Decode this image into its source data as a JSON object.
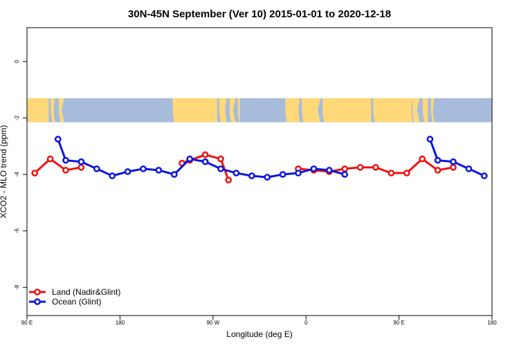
{
  "chart_data": {
    "type": "line",
    "title": "30N-45N September (Ver 10)   2015-01-01 to 2020-12-18",
    "xlabel": "Longitude (deg E)",
    "ylabel": "XCO2 - MLO trend (ppm)",
    "xlim": [
      90,
      540
    ],
    "ylim": [
      -9,
      1.2
    ],
    "x_ticks": [
      {
        "value": 90,
        "label": "90 E"
      },
      {
        "value": 180,
        "label": "180"
      },
      {
        "value": 270,
        "label": "90 W"
      },
      {
        "value": 360,
        "label": "0"
      },
      {
        "value": 450,
        "label": "90 E"
      },
      {
        "value": 540,
        "label": "180"
      }
    ],
    "y_ticks": [
      {
        "value": 0,
        "label": "0"
      },
      {
        "value": -2,
        "label": "-2"
      },
      {
        "value": -4,
        "label": "-4"
      },
      {
        "value": -6,
        "label": "-6"
      },
      {
        "value": -8,
        "label": "-8"
      }
    ],
    "map_band": {
      "y_top": -1.3,
      "y_bottom": -2.15,
      "ocean_color": "#a7bcdb",
      "land_color": "#ffd878"
    },
    "legend_position": "bottom-left",
    "series": [
      {
        "name": "Land (Nadir&Glint)",
        "color": "#ee1111",
        "segments": [
          [
            [
              97.5,
              -3.95
            ],
            [
              112.5,
              -3.45
            ],
            [
              127.5,
              -3.85
            ],
            [
              142.5,
              -3.75
            ]
          ],
          [
            [
              240,
              -3.6
            ],
            [
              247.5,
              -3.5
            ],
            [
              262.5,
              -3.3
            ],
            [
              277.5,
              -3.45
            ],
            [
              285,
              -4.2
            ]
          ],
          [
            [
              352.5,
              -3.8
            ],
            [
              367.5,
              -3.85
            ],
            [
              382.5,
              -3.9
            ],
            [
              397.5,
              -3.8
            ],
            [
              412.5,
              -3.75
            ],
            [
              427.5,
              -3.75
            ],
            [
              442.5,
              -3.95
            ],
            [
              457.5,
              -3.95
            ],
            [
              472.5,
              -3.45
            ],
            [
              487.5,
              -3.85
            ],
            [
              502.5,
              -3.75
            ]
          ]
        ]
      },
      {
        "name": "Ocean (Glint)",
        "color": "#0a14e0",
        "segments": [
          [
            [
              120,
              -2.75
            ],
            [
              127.5,
              -3.5
            ],
            [
              142.5,
              -3.55
            ],
            [
              157.5,
              -3.8
            ],
            [
              172.5,
              -4.05
            ],
            [
              187.5,
              -3.9
            ],
            [
              202.5,
              -3.8
            ],
            [
              217.5,
              -3.85
            ],
            [
              232.5,
              -4.0
            ],
            [
              247.5,
              -3.45
            ],
            [
              262.5,
              -3.55
            ],
            [
              277.5,
              -3.8
            ],
            [
              292.5,
              -3.95
            ],
            [
              307.5,
              -4.05
            ],
            [
              322.5,
              -4.1
            ],
            [
              337.5,
              -4.0
            ],
            [
              352.5,
              -3.95
            ],
            [
              367.5,
              -3.8
            ],
            [
              382.5,
              -3.85
            ],
            [
              397.5,
              -4.0
            ]
          ],
          [
            [
              480,
              -2.75
            ],
            [
              487.5,
              -3.5
            ],
            [
              502.5,
              -3.55
            ],
            [
              517.5,
              -3.8
            ],
            [
              532.5,
              -4.05
            ]
          ]
        ]
      }
    ]
  }
}
